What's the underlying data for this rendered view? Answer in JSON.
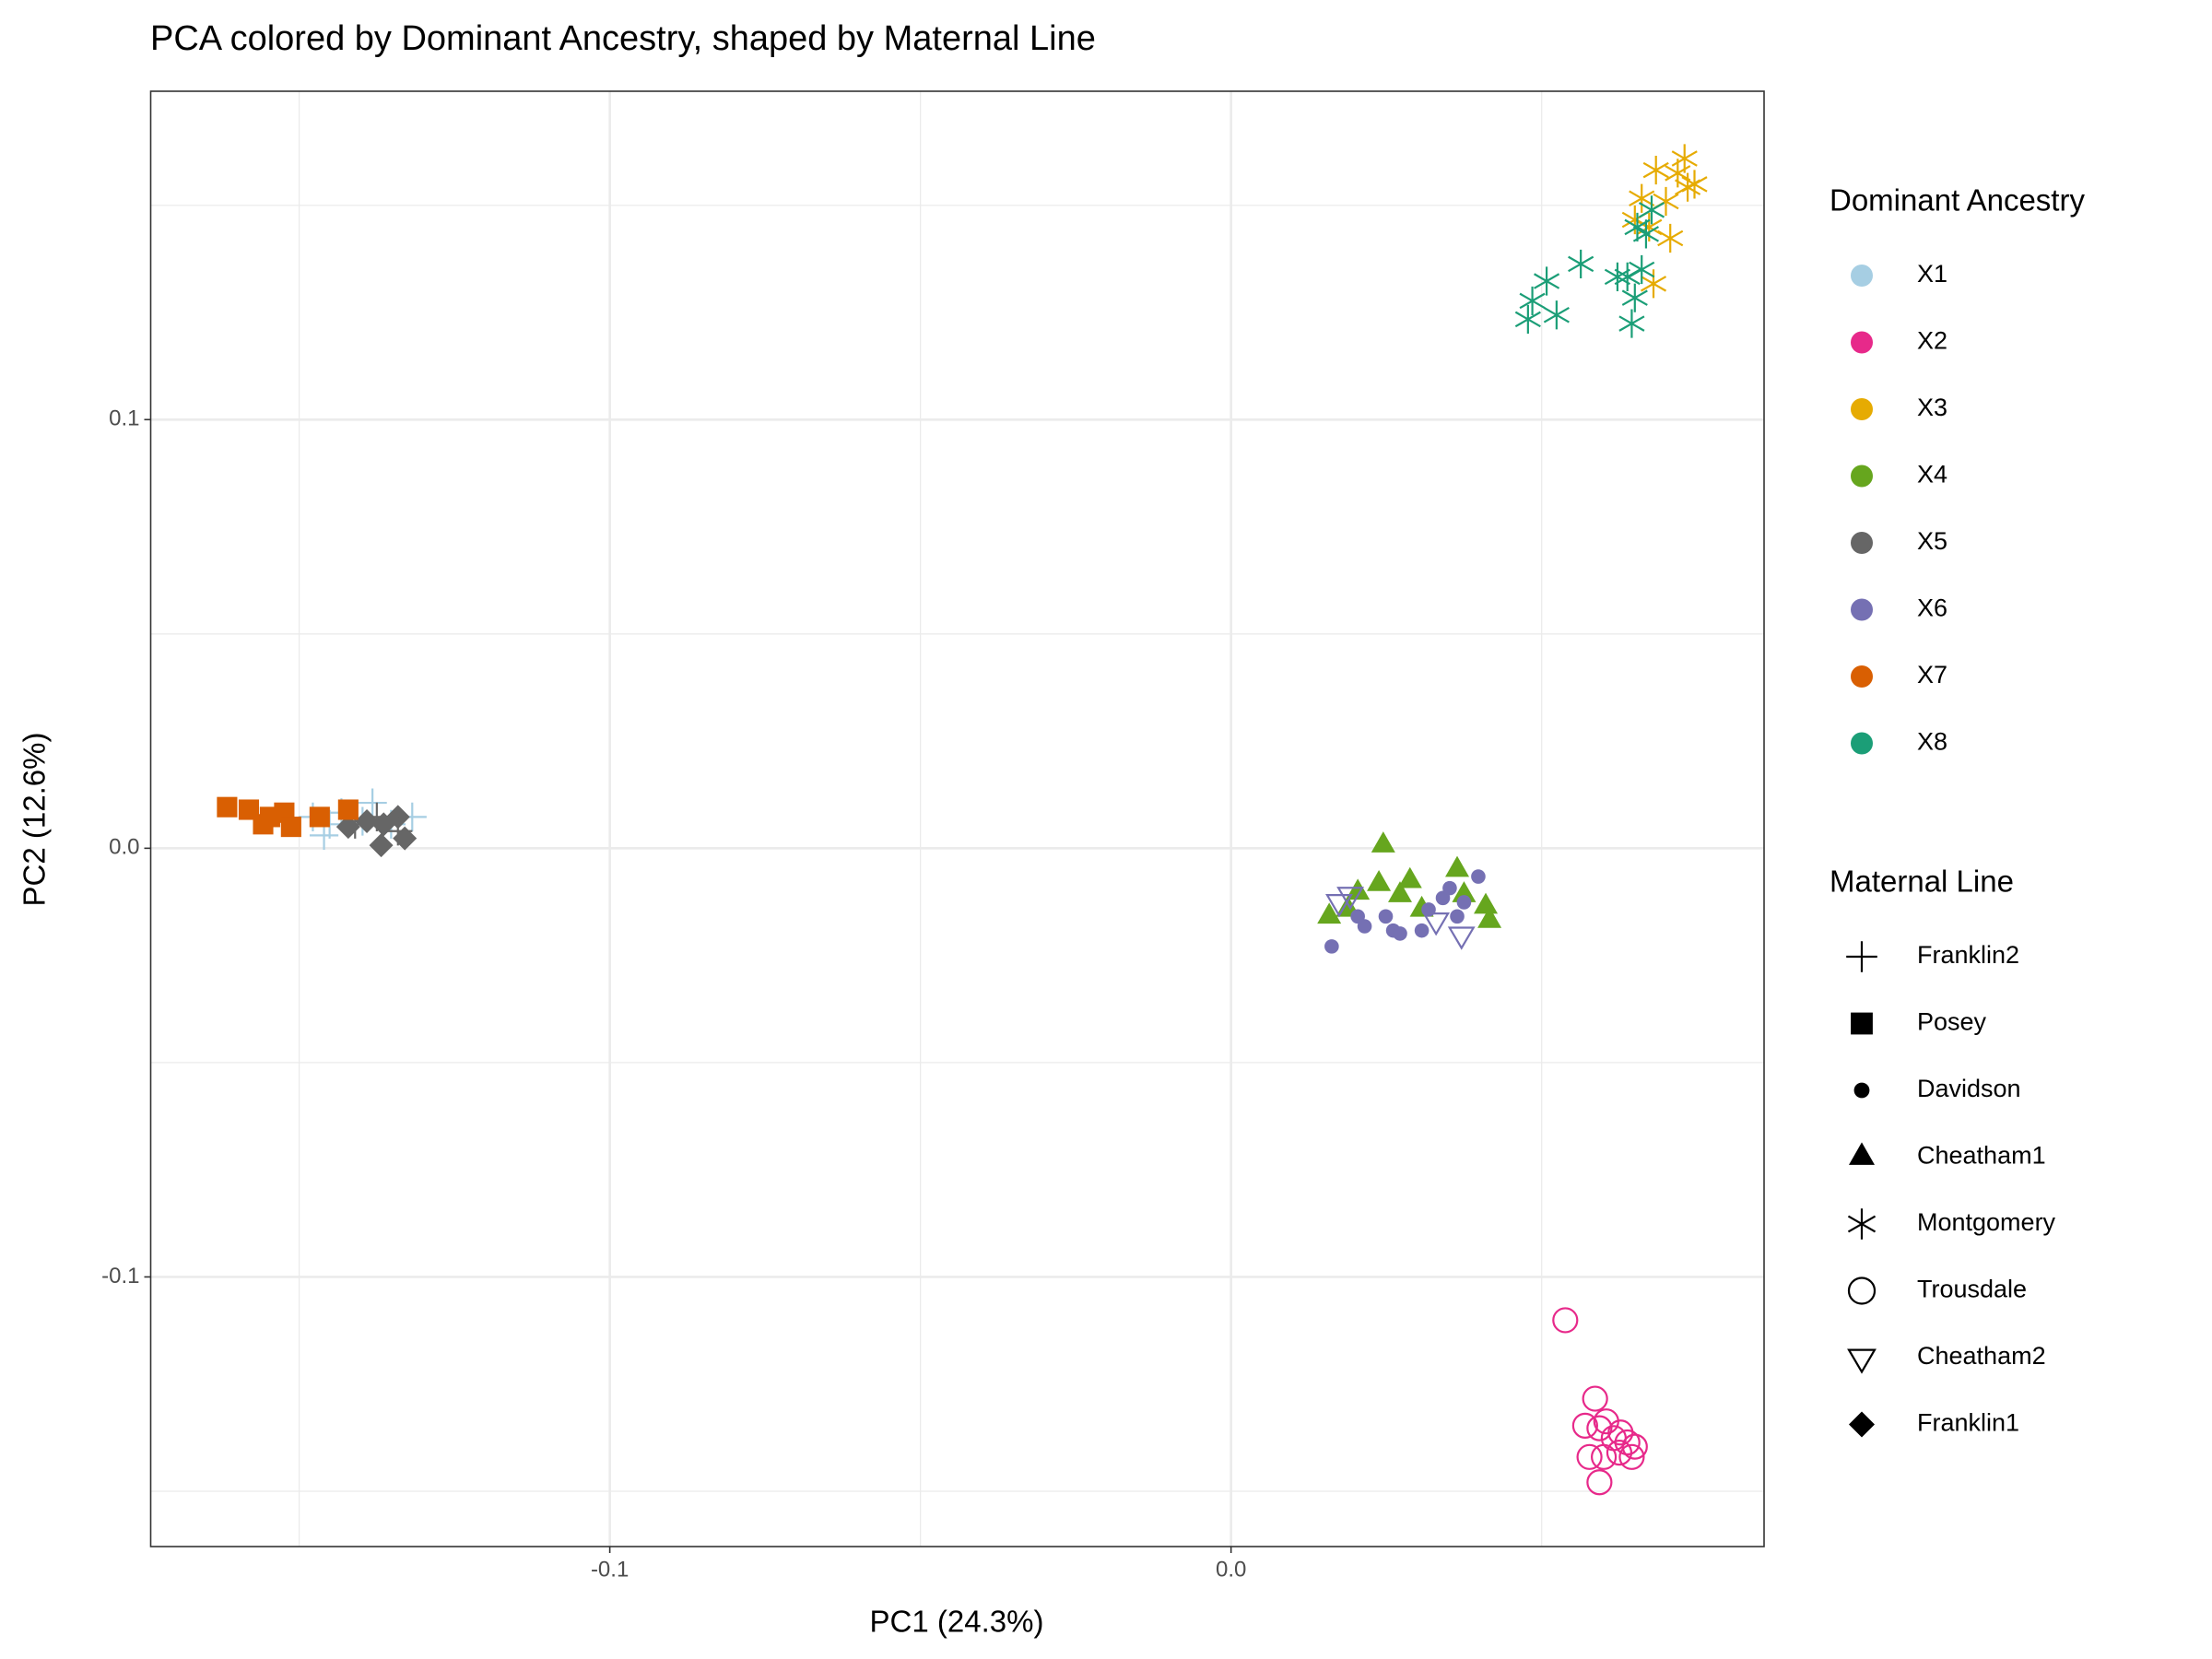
{
  "chart_data": {
    "type": "scatter",
    "title": "PCA colored by Dominant Ancestry, shaped by Maternal Line",
    "x_label": "PC1 (24.3%)",
    "y_label": "PC2 (12.6%)",
    "xlim": [
      -0.1739,
      0.0858
    ],
    "ylim": [
      -0.1629,
      0.1766
    ],
    "xticks": [
      -0.1,
      {
        "value": 0,
        "label": "0.0"
      }
    ],
    "yticks": [
      -0.1,
      {
        "value": 0,
        "label": "0.0"
      },
      0.1
    ],
    "grid": true,
    "minor_grid": true,
    "color_legend": {
      "title": "Dominant Ancestry"
    },
    "shape_legend": {
      "title": "Maternal Line",
      "items": [
        {
          "name": "Franklin2",
          "shape": "plus"
        },
        {
          "name": "Posey",
          "shape": "square"
        },
        {
          "name": "Davidson",
          "shape": "dot"
        },
        {
          "name": "Cheatham1",
          "shape": "triangle"
        },
        {
          "name": "Montgomery",
          "shape": "asterisk"
        },
        {
          "name": "Trousdale",
          "shape": "open-circle"
        },
        {
          "name": "Cheatham2",
          "shape": "open-triangle-down"
        },
        {
          "name": "Franklin1",
          "shape": "diamond"
        }
      ]
    },
    "series": [
      {
        "name": "X1",
        "color": "#a6cee3",
        "groups": [
          {
            "line": "Franklin2",
            "x": [
              -0.1478,
              -0.1451,
              -0.1432,
              -0.1398,
              -0.1382,
              -0.1352,
              -0.1318,
              -0.146
            ],
            "y": [
              0.0073,
              0.0056,
              0.0083,
              0.0063,
              0.0106,
              0.0056,
              0.0073,
              0.003
            ]
          }
        ]
      },
      {
        "name": "X2",
        "color": "#e7298a",
        "groups": [
          {
            "line": "Trousdale",
            "x": [
              0.0538,
              0.0586,
              0.057,
              0.0593,
              0.0604,
              0.0616,
              0.0627,
              0.0638,
              0.0645,
              0.06,
              0.0577,
              0.0593,
              0.0625,
              0.065
            ],
            "y": [
              -0.1101,
              -0.1284,
              -0.1347,
              -0.1353,
              -0.1337,
              -0.1376,
              -0.1363,
              -0.1386,
              -0.142,
              -0.142,
              -0.142,
              -0.1479,
              -0.141,
              -0.1396
            ]
          }
        ]
      },
      {
        "name": "X3",
        "color": "#e6ab02",
        "groups": [
          {
            "line": "Montgomery",
            "x": [
              0.065,
              0.0661,
              0.068,
              0.0684,
              0.07,
              0.0707,
              0.0719,
              0.073,
              0.0735,
              0.0746,
              0.0673
            ],
            "y": [
              0.1466,
              0.1516,
              0.1317,
              0.1582,
              0.1509,
              0.1423,
              0.1575,
              0.1609,
              0.1542,
              0.1549,
              0.1449
            ]
          }
        ]
      },
      {
        "name": "X4",
        "color": "#66a61e",
        "groups": [
          {
            "line": "Cheatham1",
            "x": [
              0.0158,
              0.0188,
              0.0238,
              0.0245,
              0.0272,
              0.0288,
              0.0307,
              0.0364,
              0.0375,
              0.041,
              0.0416,
              0.0204
            ],
            "y": [
              -0.0159,
              -0.0143,
              -0.0083,
              0.0007,
              -0.0109,
              -0.0076,
              -0.0143,
              -0.005,
              -0.0109,
              -0.0136,
              -0.0169,
              -0.0103
            ]
          }
        ]
      },
      {
        "name": "X5",
        "color": "#666666",
        "groups": [
          {
            "line": "Franklin1",
            "x": [
              -0.1421,
              -0.1391,
              -0.1368,
              -0.1341,
              -0.133,
              -0.1364
            ],
            "y": [
              0.005,
              0.0063,
              0.0007,
              0.0073,
              0.0023,
              0.0056
            ]
          },
          {
            "line": "Franklin2",
            "x": [
              -0.141,
              -0.1375,
              -0.1341
            ],
            "y": [
              0.0056,
              0.0073,
              0.004
            ]
          }
        ]
      },
      {
        "name": "X6",
        "color": "#7570b3",
        "groups": [
          {
            "line": "Davidson",
            "x": [
              0.0162,
              0.0204,
              0.0249,
              0.0261,
              0.0272,
              0.0307,
              0.0318,
              0.0341,
              0.0352,
              0.0375,
              0.0398,
              0.0364,
              0.0215
            ],
            "y": [
              -0.0229,
              -0.0159,
              -0.0159,
              -0.0192,
              -0.0199,
              -0.0192,
              -0.0143,
              -0.0116,
              -0.0093,
              -0.0126,
              -0.0066,
              -0.0159,
              -0.0182
            ]
          },
          {
            "line": "Cheatham2",
            "x": [
              0.0174,
              0.0192,
              0.033,
              0.0371
            ],
            "y": [
              -0.0126,
              -0.0109,
              -0.0169,
              -0.0202
            ]
          }
        ]
      },
      {
        "name": "X7",
        "color": "#d95f02",
        "groups": [
          {
            "line": "Posey",
            "x": [
              -0.1616,
              -0.1581,
              -0.1558,
              -0.1524,
              -0.1513,
              -0.1467,
              -0.1421,
              -0.1547
            ],
            "y": [
              0.0096,
              0.009,
              0.0056,
              0.0083,
              0.005,
              0.0073,
              0.009,
              0.0073
            ]
          }
        ]
      },
      {
        "name": "X8",
        "color": "#1b9e77",
        "groups": [
          {
            "line": "Montgomery",
            "x": [
              0.0478,
              0.0485,
              0.0508,
              0.0524,
              0.0563,
              0.0622,
              0.0645,
              0.065,
              0.0661,
              0.0668,
              0.0677,
              0.0654,
              0.0638
            ],
            "y": [
              0.1234,
              0.1277,
              0.1323,
              0.1244,
              0.1363,
              0.1333,
              0.1224,
              0.1284,
              0.135,
              0.1433,
              0.1489,
              0.1449,
              0.1333
            ]
          }
        ]
      }
    ]
  }
}
